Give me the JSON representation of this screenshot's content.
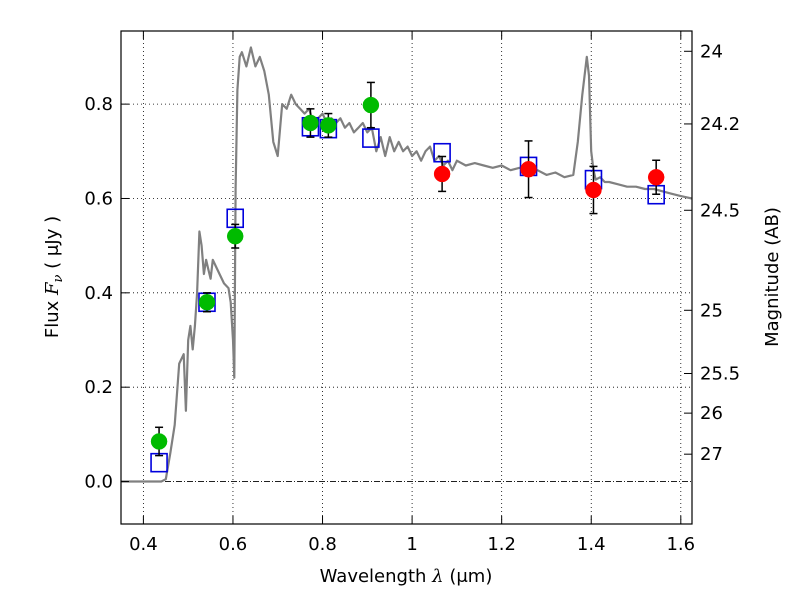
{
  "chart_data": {
    "type": "scatter",
    "xlabel_prefix": "Wavelength",
    "xlabel_symbol": "λ",
    "xlabel_unit": "(μm)",
    "ylabel_prefix": "Flux",
    "ylabel_symbol": "F",
    "ylabel_sub": "ν",
    "ylabel_unit": "( μJy )",
    "y2label": "Magnitude (AB)",
    "xlim": [
      0.35,
      1.625
    ],
    "ylim": [
      -0.09,
      0.955
    ],
    "x_ticks": [
      0.4,
      0.6,
      0.8,
      1.0,
      1.2,
      1.4,
      1.6
    ],
    "x_tick_labels": [
      "0.4",
      "0.6",
      "0.8",
      "1",
      "1.2",
      "1.4",
      "1.6"
    ],
    "y_ticks": [
      0.0,
      0.2,
      0.4,
      0.6,
      0.8
    ],
    "y_tick_labels": [
      "0.0",
      "0.2",
      "0.4",
      "0.6",
      "0.8"
    ],
    "mag_ticks": [
      {
        "flux": 0.912,
        "label": "24"
      },
      {
        "flux": 0.758,
        "label": "24.2"
      },
      {
        "flux": 0.575,
        "label": "24.5"
      },
      {
        "flux": 0.363,
        "label": "25"
      },
      {
        "flux": 0.229,
        "label": "25.5"
      },
      {
        "flux": 0.145,
        "label": "26"
      },
      {
        "flux": 0.058,
        "label": "27"
      }
    ],
    "grid": true,
    "colors": {
      "model": "#808080",
      "measured_optical": "#00bb00",
      "measured_nir": "#ff0000",
      "synthetic": "#0000dd",
      "error_bar": "#000000"
    },
    "series": [
      {
        "name": "Model SED",
        "style": "line",
        "x": [
          0.35,
          0.44,
          0.45,
          0.46,
          0.47,
          0.48,
          0.49,
          0.495,
          0.5,
          0.505,
          0.51,
          0.515,
          0.52,
          0.525,
          0.53,
          0.535,
          0.54,
          0.545,
          0.55,
          0.555,
          0.56,
          0.57,
          0.58,
          0.59,
          0.595,
          0.6,
          0.603,
          0.606,
          0.61,
          0.615,
          0.62,
          0.63,
          0.64,
          0.65,
          0.66,
          0.67,
          0.68,
          0.69,
          0.7,
          0.71,
          0.72,
          0.73,
          0.74,
          0.75,
          0.76,
          0.77,
          0.78,
          0.79,
          0.8,
          0.81,
          0.82,
          0.83,
          0.84,
          0.85,
          0.86,
          0.87,
          0.88,
          0.89,
          0.9,
          0.91,
          0.92,
          0.93,
          0.94,
          0.95,
          0.96,
          0.97,
          0.98,
          0.99,
          1.0,
          1.01,
          1.02,
          1.03,
          1.04,
          1.05,
          1.06,
          1.07,
          1.08,
          1.09,
          1.1,
          1.12,
          1.14,
          1.16,
          1.18,
          1.2,
          1.22,
          1.24,
          1.26,
          1.28,
          1.3,
          1.32,
          1.34,
          1.36,
          1.37,
          1.38,
          1.39,
          1.395,
          1.4,
          1.405,
          1.41,
          1.42,
          1.43,
          1.44,
          1.46,
          1.48,
          1.5,
          1.52,
          1.54,
          1.56,
          1.58,
          1.6,
          1.625
        ],
        "y": [
          0.0,
          0.0,
          0.005,
          0.06,
          0.12,
          0.25,
          0.27,
          0.15,
          0.3,
          0.33,
          0.28,
          0.33,
          0.4,
          0.53,
          0.5,
          0.44,
          0.47,
          0.45,
          0.43,
          0.47,
          0.46,
          0.44,
          0.42,
          0.41,
          0.38,
          0.3,
          0.22,
          0.62,
          0.83,
          0.9,
          0.91,
          0.88,
          0.92,
          0.88,
          0.9,
          0.87,
          0.82,
          0.72,
          0.69,
          0.8,
          0.79,
          0.82,
          0.8,
          0.79,
          0.78,
          0.79,
          0.76,
          0.77,
          0.78,
          0.76,
          0.77,
          0.76,
          0.77,
          0.75,
          0.76,
          0.74,
          0.75,
          0.76,
          0.74,
          0.75,
          0.7,
          0.73,
          0.69,
          0.73,
          0.7,
          0.72,
          0.7,
          0.71,
          0.69,
          0.7,
          0.68,
          0.7,
          0.71,
          0.68,
          0.69,
          0.67,
          0.68,
          0.66,
          0.68,
          0.67,
          0.675,
          0.67,
          0.665,
          0.67,
          0.66,
          0.665,
          0.655,
          0.66,
          0.65,
          0.655,
          0.645,
          0.65,
          0.72,
          0.82,
          0.9,
          0.86,
          0.7,
          0.66,
          0.64,
          0.645,
          0.635,
          0.635,
          0.63,
          0.625,
          0.625,
          0.62,
          0.62,
          0.615,
          0.61,
          0.605,
          0.6
        ]
      },
      {
        "name": "Synthetic photometry",
        "style": "open-square",
        "x": [
          0.435,
          0.542,
          0.605,
          0.773,
          0.813,
          0.908,
          1.067,
          1.26,
          1.405,
          1.545
        ],
        "y": [
          0.04,
          0.38,
          0.558,
          0.752,
          0.748,
          0.728,
          0.697,
          0.668,
          0.64,
          0.608
        ]
      },
      {
        "name": "Measured optical",
        "style": "filled-circle",
        "x": [
          0.435,
          0.542,
          0.605,
          0.773,
          0.813,
          0.908
        ],
        "y": [
          0.085,
          0.38,
          0.52,
          0.76,
          0.755,
          0.798
        ],
        "yerr": [
          0.03,
          0.02,
          0.025,
          0.03,
          0.025,
          0.048
        ]
      },
      {
        "name": "Measured near-IR",
        "style": "filled-circle",
        "x": [
          1.067,
          1.26,
          1.405,
          1.545
        ],
        "y": [
          0.652,
          0.662,
          0.618,
          0.645
        ],
        "yerr": [
          0.037,
          0.06,
          0.05,
          0.036
        ]
      }
    ]
  }
}
